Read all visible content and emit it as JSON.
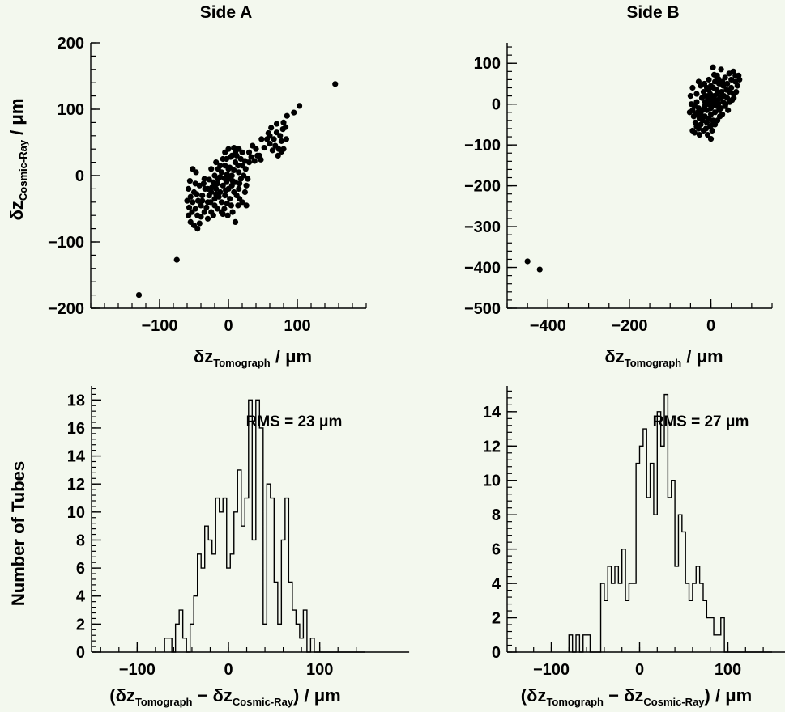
{
  "chart_data": [
    {
      "id": "scatterA",
      "type": "scatter",
      "title": "Side A",
      "xlabel": {
        "prefix": "δz",
        "sub": "Tomograph",
        "unit": "/ μm"
      },
      "ylabel": {
        "prefix": "δz",
        "sub": "Cosmic-Ray",
        "unit": "/ μm"
      },
      "xlim": [
        -200,
        200
      ],
      "ylim": [
        -200,
        200
      ],
      "xticks": [
        -100,
        0,
        100
      ],
      "yticks": [
        -200,
        -100,
        0,
        100,
        200
      ],
      "points": [
        [
          -130,
          -180
        ],
        [
          -75,
          -127
        ],
        [
          155,
          138
        ],
        [
          103,
          105
        ],
        [
          85,
          90
        ],
        [
          80,
          80
        ],
        [
          95,
          95
        ],
        [
          60,
          60
        ],
        [
          62,
          72
        ],
        [
          66,
          55
        ],
        [
          70,
          65
        ],
        [
          75,
          60
        ],
        [
          79,
          70
        ],
        [
          60,
          48
        ],
        [
          68,
          45
        ],
        [
          73,
          40
        ],
        [
          77,
          52
        ],
        [
          64,
          38
        ],
        [
          56,
          55
        ],
        [
          72,
          30
        ],
        [
          80,
          40
        ],
        [
          58,
          64
        ],
        [
          84,
          55
        ],
        [
          52,
          42
        ],
        [
          48,
          55
        ],
        [
          70,
          78
        ],
        [
          77,
          36
        ],
        [
          83,
          73
        ],
        [
          40,
          40
        ],
        [
          42,
          30
        ],
        [
          38,
          22
        ],
        [
          30,
          35
        ],
        [
          45,
          30
        ],
        [
          35,
          45
        ],
        [
          47,
          24
        ],
        [
          33,
          28
        ],
        [
          -55,
          -70
        ],
        [
          -50,
          -75
        ],
        [
          -58,
          -60
        ],
        [
          -45,
          -60
        ],
        [
          -48,
          -50
        ],
        [
          -52,
          -40
        ],
        [
          -42,
          -72
        ],
        [
          -57,
          -48
        ],
        [
          -46,
          -28
        ],
        [
          -55,
          -32
        ],
        [
          -60,
          -38
        ],
        [
          -40,
          -45
        ],
        [
          -35,
          -55
        ],
        [
          -50,
          -25
        ],
        [
          -44,
          -38
        ],
        [
          -53,
          -55
        ],
        [
          -38,
          -30
        ],
        [
          -48,
          -12
        ],
        [
          -58,
          -20
        ],
        [
          -42,
          -15
        ],
        [
          -56,
          -8
        ],
        [
          -35,
          -5
        ],
        [
          -30,
          -40
        ],
        [
          -25,
          -55
        ],
        [
          -30,
          -20
        ],
        [
          -25,
          -25
        ],
        [
          -22,
          -10
        ],
        [
          -20,
          -35
        ],
        [
          -18,
          -20
        ],
        [
          -15,
          -5
        ],
        [
          -28,
          -30
        ],
        [
          -12,
          -25
        ],
        [
          -8,
          -15
        ],
        [
          -10,
          -40
        ],
        [
          -5,
          -30
        ],
        [
          -3,
          -10
        ],
        [
          0,
          -20
        ],
        [
          0,
          -5
        ],
        [
          2,
          -35
        ],
        [
          5,
          -15
        ],
        [
          8,
          -25
        ],
        [
          10,
          -10
        ],
        [
          12,
          -30
        ],
        [
          15,
          -20
        ],
        [
          18,
          -5
        ],
        [
          20,
          -40
        ],
        [
          -20,
          -45
        ],
        [
          -16,
          -50
        ],
        [
          -10,
          -55
        ],
        [
          -6,
          -50
        ],
        [
          4,
          -45
        ],
        [
          14,
          -45
        ],
        [
          -26,
          -40
        ],
        [
          -34,
          -20
        ],
        [
          -20,
          0
        ],
        [
          -15,
          10
        ],
        [
          -10,
          5
        ],
        [
          -5,
          15
        ],
        [
          0,
          10
        ],
        [
          5,
          0
        ],
        [
          10,
          20
        ],
        [
          15,
          5
        ],
        [
          20,
          15
        ],
        [
          25,
          10
        ],
        [
          -25,
          10
        ],
        [
          -18,
          20
        ],
        [
          -8,
          25
        ],
        [
          3,
          28
        ],
        [
          12,
          30
        ],
        [
          18,
          25
        ],
        [
          22,
          0
        ],
        [
          8,
          8
        ],
        [
          -2,
          2
        ],
        [
          -12,
          -2
        ],
        [
          28,
          -5
        ],
        [
          30,
          20
        ],
        [
          5,
          30
        ],
        [
          10,
          35
        ],
        [
          15,
          40
        ],
        [
          0,
          40
        ],
        [
          -5,
          35
        ],
        [
          20,
          35
        ],
        [
          8,
          42
        ],
        [
          -3,
          25
        ],
        [
          -20,
          -15
        ],
        [
          -2,
          -42
        ],
        [
          6,
          -55
        ],
        [
          16,
          -35
        ],
        [
          24,
          -25
        ],
        [
          26,
          -45
        ],
        [
          -1,
          -60
        ],
        [
          -30,
          -65
        ],
        [
          -45,
          -80
        ],
        [
          10,
          -70
        ],
        [
          -40,
          -62
        ],
        [
          -22,
          -60
        ],
        [
          -14,
          -32
        ],
        [
          -6,
          -4
        ],
        [
          2,
          12
        ],
        [
          14,
          15
        ],
        [
          24,
          22
        ],
        [
          -12,
          15
        ],
        [
          -28,
          -6
        ],
        [
          -36,
          -12
        ],
        [
          -52,
          10
        ],
        [
          -47,
          5
        ],
        [
          -32,
          -48
        ],
        [
          -24,
          -18
        ],
        [
          -16,
          -12
        ],
        [
          -4,
          -22
        ],
        [
          6,
          -8
        ],
        [
          16,
          -12
        ],
        [
          26,
          -15
        ],
        [
          -8,
          -58
        ],
        [
          -18,
          -28
        ],
        [
          -38,
          -38
        ]
      ]
    },
    {
      "id": "scatterB",
      "type": "scatter",
      "title": "Side B",
      "xlabel": {
        "prefix": "δz",
        "sub": "Tomograph",
        "unit": "/ μm"
      },
      "ylabel": {
        "prefix": "δz",
        "sub": "Cosmic-Ray",
        "unit": "/ μm"
      },
      "xlim": [
        -500,
        150
      ],
      "ylim": [
        -500,
        150
      ],
      "xticks": [
        -400,
        -200,
        0
      ],
      "yticks": [
        -500,
        -400,
        -300,
        -200,
        -100,
        0,
        100
      ],
      "points": [
        [
          -450,
          -385
        ],
        [
          -420,
          -405
        ],
        [
          -45,
          -65
        ],
        [
          -40,
          -70
        ],
        [
          -35,
          -55
        ],
        [
          -30,
          -60
        ],
        [
          -38,
          -45
        ],
        [
          -42,
          -30
        ],
        [
          -25,
          -50
        ],
        [
          -20,
          -40
        ],
        [
          -28,
          -35
        ],
        [
          -32,
          -20
        ],
        [
          -45,
          -15
        ],
        [
          -40,
          -5
        ],
        [
          -35,
          5
        ],
        [
          -30,
          -10
        ],
        [
          -25,
          -25
        ],
        [
          -20,
          -15
        ],
        [
          -15,
          -30
        ],
        [
          -10,
          -45
        ],
        [
          -5,
          -35
        ],
        [
          0,
          -25
        ],
        [
          5,
          -40
        ],
        [
          -2,
          -55
        ],
        [
          -12,
          -60
        ],
        [
          3,
          -65
        ],
        [
          0,
          -85
        ],
        [
          10,
          -50
        ],
        [
          -15,
          -5
        ],
        [
          -10,
          -15
        ],
        [
          -5,
          0
        ],
        [
          0,
          -10
        ],
        [
          5,
          5
        ],
        [
          10,
          -20
        ],
        [
          15,
          -5
        ],
        [
          20,
          -15
        ],
        [
          -8,
          10
        ],
        [
          2,
          15
        ],
        [
          12,
          10
        ],
        [
          18,
          0
        ],
        [
          25,
          -10
        ],
        [
          -22,
          15
        ],
        [
          -12,
          20
        ],
        [
          -2,
          25
        ],
        [
          8,
          20
        ],
        [
          15,
          25
        ],
        [
          22,
          15
        ],
        [
          30,
          5
        ],
        [
          35,
          -5
        ],
        [
          28,
          -25
        ],
        [
          -18,
          30
        ],
        [
          -6,
          35
        ],
        [
          6,
          40
        ],
        [
          14,
          35
        ],
        [
          26,
          30
        ],
        [
          32,
          20
        ],
        [
          40,
          15
        ],
        [
          45,
          30
        ],
        [
          50,
          40
        ],
        [
          55,
          25
        ],
        [
          60,
          55
        ],
        [
          65,
          45
        ],
        [
          70,
          60
        ],
        [
          60,
          70
        ],
        [
          50,
          60
        ],
        [
          40,
          50
        ],
        [
          30,
          45
        ],
        [
          20,
          50
        ],
        [
          10,
          55
        ],
        [
          0,
          45
        ],
        [
          -10,
          40
        ],
        [
          35,
          65
        ],
        [
          45,
          75
        ],
        [
          55,
          80
        ],
        [
          25,
          85
        ],
        [
          5,
          90
        ],
        [
          15,
          70
        ],
        [
          -5,
          60
        ],
        [
          38,
          35
        ],
        [
          52,
          10
        ],
        [
          62,
          30
        ],
        [
          68,
          70
        ],
        [
          42,
          -15
        ],
        [
          -25,
          45
        ],
        [
          -35,
          25
        ],
        [
          -45,
          40
        ],
        [
          -50,
          20
        ],
        [
          -48,
          0
        ],
        [
          -52,
          -20
        ],
        [
          -38,
          -25
        ],
        [
          -28,
          -75
        ],
        [
          -18,
          -65
        ],
        [
          -8,
          -75
        ],
        [
          4,
          -50
        ],
        [
          16,
          -40
        ],
        [
          22,
          -30
        ],
        [
          -14,
          5
        ],
        [
          -4,
          12
        ],
        [
          6,
          -2
        ],
        [
          16,
          8
        ],
        [
          26,
          18
        ],
        [
          36,
          0
        ],
        [
          46,
          5
        ],
        [
          56,
          15
        ],
        [
          28,
          55
        ],
        [
          18,
          62
        ],
        [
          8,
          72
        ],
        [
          -16,
          50
        ],
        [
          -30,
          55
        ]
      ]
    },
    {
      "id": "histA",
      "type": "histogram",
      "title": "",
      "xlabel": "(δz_Tomograph − δz_Cosmic-Ray) / μm",
      "ylabel": "Number of Tubes",
      "annotation": "RMS = 23 μm",
      "xlim": [
        -150,
        150
      ],
      "ylim": [
        0,
        19
      ],
      "xticks": [
        -100,
        0,
        100
      ],
      "yticks": [
        0,
        2,
        4,
        6,
        8,
        10,
        12,
        14,
        16,
        18
      ],
      "bin_start": -70,
      "bin_width": 4,
      "counts": [
        1,
        1,
        0,
        2,
        3,
        1,
        0,
        2,
        4,
        7,
        6,
        9,
        8,
        7,
        11,
        10,
        11,
        6,
        7,
        10,
        13,
        9,
        11,
        18,
        8,
        18,
        16,
        2,
        12,
        11,
        5,
        2,
        8,
        11,
        5,
        3,
        2,
        1,
        3,
        0,
        1,
        0,
        0,
        0,
        0,
        0,
        0,
        0,
        0,
        0,
        0,
        0,
        0,
        0,
        0,
        0,
        0,
        0,
        0,
        0,
        0,
        0,
        0,
        0,
        0,
        0,
        0
      ]
    },
    {
      "id": "histB",
      "type": "histogram",
      "title": "",
      "xlabel": "(δz_Tomograph − δz_Cosmic-Ray) / μm",
      "ylabel": "Number of Tubes",
      "annotation": "RMS = 27 μm",
      "xlim": [
        -150,
        150
      ],
      "ylim": [
        0,
        15.5
      ],
      "xticks": [
        -100,
        0,
        100
      ],
      "yticks": [
        0,
        2,
        4,
        6,
        8,
        10,
        12,
        14
      ],
      "bin_start": -80,
      "bin_width": 4,
      "counts": [
        1,
        0,
        1,
        0,
        1,
        1,
        0,
        0,
        0,
        4,
        3,
        5,
        4,
        5,
        4,
        6,
        3,
        4,
        4,
        11,
        12,
        13,
        9,
        11,
        8,
        14,
        12,
        15,
        9,
        10,
        5,
        8,
        7,
        4,
        3,
        4,
        5,
        4,
        3,
        2,
        2,
        1,
        1,
        2,
        0,
        0,
        0,
        0,
        0,
        0,
        0,
        0,
        0,
        0,
        0,
        0,
        0,
        0,
        0,
        0,
        0,
        0,
        0,
        0,
        0,
        0
      ]
    }
  ],
  "labels": {
    "titleA": "Side A",
    "titleB": "Side B",
    "rmsA": "RMS = 23 μm",
    "rmsB": "RMS = 27 μm"
  }
}
